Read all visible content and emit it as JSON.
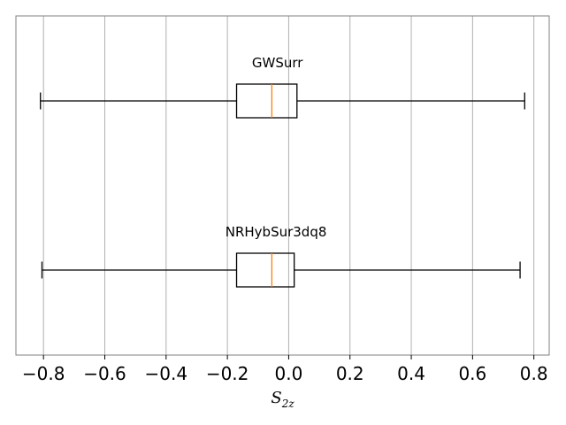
{
  "chart_data": {
    "type": "boxplot",
    "orientation": "horizontal",
    "x_label_main": "S",
    "x_label_sub": "2z",
    "xlim": [
      -0.89,
      0.85
    ],
    "x_ticks": [
      -0.8,
      -0.6,
      -0.4,
      -0.2,
      0.0,
      0.2,
      0.4,
      0.6,
      0.8
    ],
    "x_tick_labels": [
      "−0.8",
      "−0.6",
      "−0.4",
      "−0.2",
      "0.0",
      "0.2",
      "0.4",
      "0.6",
      "0.8"
    ],
    "grid": "vertical",
    "boxes": [
      {
        "name": "GWSurr",
        "whisker_low": -0.81,
        "q1": -0.17,
        "median": -0.055,
        "q3": 0.027,
        "whisker_high": 0.77
      },
      {
        "name": "NRHybSur3dq8",
        "whisker_low": -0.805,
        "q1": -0.17,
        "median": -0.055,
        "q3": 0.018,
        "whisker_high": 0.755
      }
    ],
    "colors": {
      "box": "#000000",
      "median": "#ff7f0e",
      "grid": "#b0b0b0",
      "frame": "#808080"
    }
  }
}
